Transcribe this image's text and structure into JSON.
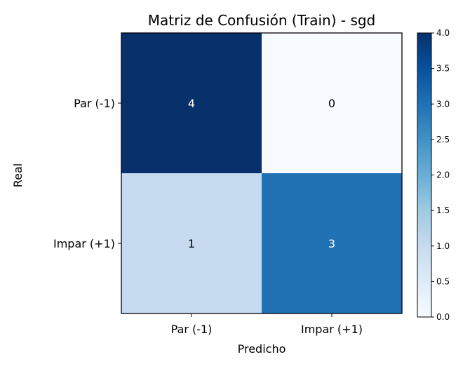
{
  "chart_data": {
    "type": "heatmap",
    "title": "Matriz de Confusión (Train) - sgd",
    "xlabel": "Predicho",
    "ylabel": "Real",
    "x_categories": [
      "Par (-1)",
      "Impar (+1)"
    ],
    "y_categories": [
      "Par (-1)",
      "Impar (+1)"
    ],
    "matrix": [
      [
        4,
        0
      ],
      [
        1,
        3
      ]
    ],
    "colormap": "Blues",
    "colorbar": {
      "range": [
        0.0,
        4.0
      ],
      "ticks": [
        "0.0",
        "0.5",
        "1.0",
        "1.5",
        "2.0",
        "2.5",
        "3.0",
        "3.5",
        "4.0"
      ]
    },
    "grid": false
  }
}
